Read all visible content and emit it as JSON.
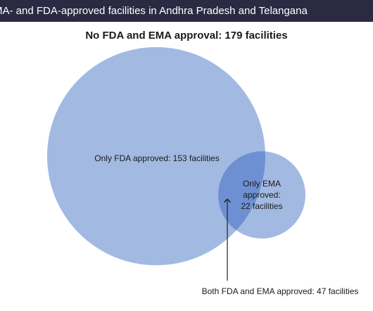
{
  "header": {
    "title": "MA- and FDA-approved facilities in Andhra Pradesh and Telangana"
  },
  "venn": {
    "subtitle": "No FDA and EMA approval: 179 facilities",
    "fda_only_label": "Only FDA approved: 153 facilities",
    "ema_only_label_lines": [
      "Only EMA",
      "approved:",
      "22 facilities"
    ],
    "overlap_label": "Both FDA and EMA approved: 47 facilities",
    "colors": {
      "header_bg": "#2b2a43",
      "fda_circle": "#a2b9e2",
      "ema_circle": "#a2b9e2",
      "overlap": "#6e90d2"
    }
  }
}
